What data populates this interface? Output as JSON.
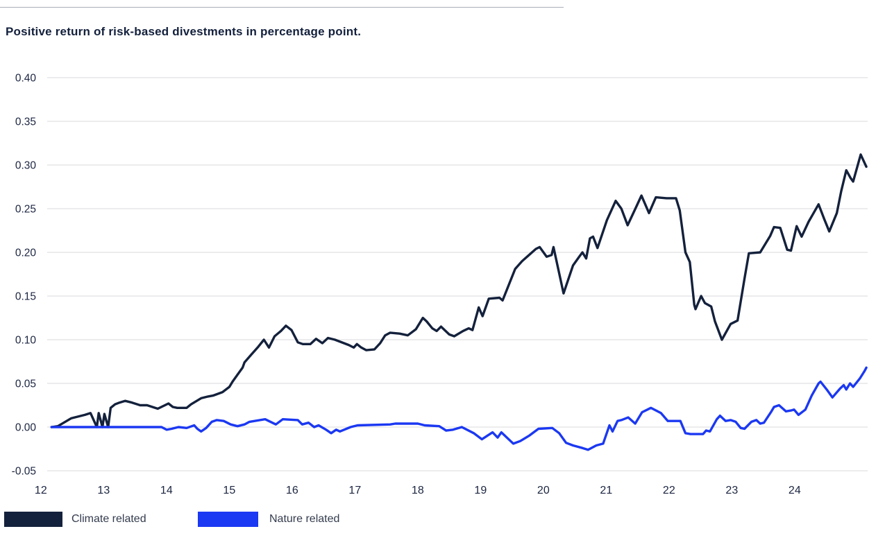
{
  "title": "Positive return of risk-based divestments in percentage point.",
  "colors": {
    "background": "#ffffff",
    "climate": "#14213c",
    "nature": "#1b38f2",
    "grid": "#d9dadd",
    "axis_text": "#1b2540",
    "title_text": "#13203c",
    "legend_text": "#333b4d",
    "top_rule": "#a9adb6"
  },
  "legend": {
    "items": [
      {
        "label": "Climate related",
        "color": "#14213c"
      },
      {
        "label": "Nature related",
        "color": "#1b38f2"
      }
    ]
  },
  "chart_data": {
    "type": "line",
    "title": "Positive return of risk-based divestments in percentage point.",
    "xlabel": "",
    "ylabel": "",
    "x_unit": "year (2012-2024, fractional = month)",
    "y_unit": "percentage point",
    "xlim": [
      11.93,
      25.0
    ],
    "ylim": [
      -0.05,
      0.4
    ],
    "grid": "horizontal",
    "legend_position": "bottom-left",
    "x_tick_labels": [
      "12",
      "13",
      "14",
      "15",
      "16",
      "17",
      "18",
      "19",
      "20",
      "21",
      "22",
      "23",
      "24"
    ],
    "x_tick_values": [
      12,
      13,
      14,
      15,
      16,
      17,
      18,
      19,
      20,
      21,
      22,
      23,
      24
    ],
    "y_tick_labels": [
      "0.40",
      "0.35",
      "0.30",
      "0.25",
      "0.20",
      "0.15",
      "0.10",
      "0.05",
      "0.00",
      "-0.05"
    ],
    "y_tick_values": [
      0.4,
      0.35,
      0.3,
      0.25,
      0.2,
      0.15,
      0.1,
      0.05,
      0.0,
      -0.05
    ],
    "series": [
      {
        "name": "Climate related",
        "color": "#14213c",
        "points": [
          [
            12.0,
            0
          ],
          [
            12.1,
            0.001
          ],
          [
            12.31,
            0.01
          ],
          [
            12.53,
            0.014
          ],
          [
            12.62,
            0.016
          ],
          [
            12.72,
            0
          ],
          [
            12.75,
            0.016
          ],
          [
            12.81,
            0
          ],
          [
            12.84,
            0.015
          ],
          [
            12.9,
            0
          ],
          [
            12.94,
            0.022
          ],
          [
            13.01,
            0.026
          ],
          [
            13.08,
            0.028
          ],
          [
            13.17,
            0.03
          ],
          [
            13.28,
            0.028
          ],
          [
            13.41,
            0.025
          ],
          [
            13.52,
            0.025
          ],
          [
            13.69,
            0.021
          ],
          [
            13.86,
            0.027
          ],
          [
            13.93,
            0.023
          ],
          [
            14.0,
            0.022
          ],
          [
            14.15,
            0.022
          ],
          [
            14.22,
            0.026
          ],
          [
            14.38,
            0.033
          ],
          [
            14.49,
            0.035
          ],
          [
            14.57,
            0.036
          ],
          [
            14.72,
            0.04
          ],
          [
            14.83,
            0.046
          ],
          [
            14.88,
            0.052
          ],
          [
            14.96,
            0.06
          ],
          [
            15.04,
            0.068
          ],
          [
            15.07,
            0.074
          ],
          [
            15.18,
            0.083
          ],
          [
            15.29,
            0.092
          ],
          [
            15.38,
            0.1
          ],
          [
            15.46,
            0.091
          ],
          [
            15.55,
            0.104
          ],
          [
            15.65,
            0.11
          ],
          [
            15.73,
            0.116
          ],
          [
            15.82,
            0.111
          ],
          [
            15.92,
            0.097
          ],
          [
            16.0,
            0.095
          ],
          [
            16.12,
            0.095
          ],
          [
            16.21,
            0.101
          ],
          [
            16.31,
            0.096
          ],
          [
            16.4,
            0.102
          ],
          [
            16.51,
            0.1
          ],
          [
            16.73,
            0.094
          ],
          [
            16.81,
            0.091
          ],
          [
            16.86,
            0.095
          ],
          [
            16.93,
            0.091
          ],
          [
            17.01,
            0.088
          ],
          [
            17.14,
            0.089
          ],
          [
            17.23,
            0.096
          ],
          [
            17.31,
            0.105
          ],
          [
            17.39,
            0.108
          ],
          [
            17.54,
            0.107
          ],
          [
            17.67,
            0.105
          ],
          [
            17.8,
            0.112
          ],
          [
            17.91,
            0.125
          ],
          [
            17.97,
            0.121
          ],
          [
            18.06,
            0.113
          ],
          [
            18.13,
            0.11
          ],
          [
            18.2,
            0.115
          ],
          [
            18.33,
            0.106
          ],
          [
            18.41,
            0.104
          ],
          [
            18.55,
            0.11
          ],
          [
            18.64,
            0.113
          ],
          [
            18.7,
            0.111
          ],
          [
            18.8,
            0.137
          ],
          [
            18.86,
            0.127
          ],
          [
            18.96,
            0.147
          ],
          [
            19.13,
            0.148
          ],
          [
            19.18,
            0.145
          ],
          [
            19.38,
            0.181
          ],
          [
            19.49,
            0.19
          ],
          [
            19.71,
            0.204
          ],
          [
            19.77,
            0.206
          ],
          [
            19.88,
            0.195
          ],
          [
            19.96,
            0.197
          ],
          [
            19.99,
            0.206
          ],
          [
            20.15,
            0.153
          ],
          [
            20.3,
            0.185
          ],
          [
            20.4,
            0.195
          ],
          [
            20.45,
            0.2
          ],
          [
            20.51,
            0.193
          ],
          [
            20.57,
            0.216
          ],
          [
            20.62,
            0.218
          ],
          [
            20.69,
            0.205
          ],
          [
            20.84,
            0.237
          ],
          [
            20.98,
            0.259
          ],
          [
            21.07,
            0.25
          ],
          [
            21.17,
            0.231
          ],
          [
            21.28,
            0.248
          ],
          [
            21.39,
            0.265
          ],
          [
            21.51,
            0.245
          ],
          [
            21.62,
            0.263
          ],
          [
            21.79,
            0.262
          ],
          [
            21.94,
            0.262
          ],
          [
            22.0,
            0.248
          ],
          [
            22.09,
            0.2
          ],
          [
            22.16,
            0.189
          ],
          [
            22.23,
            0.14
          ],
          [
            22.25,
            0.135
          ],
          [
            22.34,
            0.15
          ],
          [
            22.4,
            0.142
          ],
          [
            22.5,
            0.138
          ],
          [
            22.56,
            0.121
          ],
          [
            22.67,
            0.1
          ],
          [
            22.81,
            0.118
          ],
          [
            22.92,
            0.122
          ],
          [
            23.03,
            0.17
          ],
          [
            23.1,
            0.199
          ],
          [
            23.28,
            0.2
          ],
          [
            23.44,
            0.219
          ],
          [
            23.5,
            0.229
          ],
          [
            23.6,
            0.228
          ],
          [
            23.71,
            0.203
          ],
          [
            23.77,
            0.202
          ],
          [
            23.86,
            0.23
          ],
          [
            23.94,
            0.218
          ],
          [
            24.05,
            0.235
          ],
          [
            24.13,
            0.245
          ],
          [
            24.21,
            0.255
          ],
          [
            24.3,
            0.238
          ],
          [
            24.38,
            0.224
          ],
          [
            24.5,
            0.245
          ],
          [
            24.57,
            0.27
          ],
          [
            24.65,
            0.294
          ],
          [
            24.72,
            0.285
          ],
          [
            24.76,
            0.281
          ],
          [
            24.88,
            0.312
          ],
          [
            24.97,
            0.298
          ]
        ]
      },
      {
        "name": "Nature related",
        "color": "#1b38f2",
        "points": [
          [
            12.0,
            0
          ],
          [
            13.75,
            0
          ],
          [
            13.83,
            -0.003
          ],
          [
            13.91,
            -0.002
          ],
          [
            14.02,
            0
          ],
          [
            14.15,
            -0.001
          ],
          [
            14.27,
            0.002
          ],
          [
            14.32,
            -0.002
          ],
          [
            14.38,
            -0.005
          ],
          [
            14.46,
            -0.001
          ],
          [
            14.55,
            0.006
          ],
          [
            14.63,
            0.008
          ],
          [
            14.74,
            0.007
          ],
          [
            14.85,
            0.003
          ],
          [
            14.96,
            0.001
          ],
          [
            15.07,
            0.003
          ],
          [
            15.15,
            0.006
          ],
          [
            15.4,
            0.009
          ],
          [
            15.57,
            0.003
          ],
          [
            15.68,
            0.009
          ],
          [
            15.92,
            0.008
          ],
          [
            15.99,
            0.003
          ],
          [
            16.09,
            0.005
          ],
          [
            16.18,
            0
          ],
          [
            16.25,
            0.002
          ],
          [
            16.37,
            -0.003
          ],
          [
            16.45,
            -0.007
          ],
          [
            16.53,
            -0.003
          ],
          [
            16.59,
            -0.005
          ],
          [
            16.76,
            0
          ],
          [
            16.87,
            0.002
          ],
          [
            17.39,
            0.003
          ],
          [
            17.47,
            0.004
          ],
          [
            17.83,
            0.004
          ],
          [
            17.94,
            0.002
          ],
          [
            18.17,
            0.001
          ],
          [
            18.28,
            -0.004
          ],
          [
            18.39,
            -0.003
          ],
          [
            18.53,
            0
          ],
          [
            18.72,
            -0.007
          ],
          [
            18.85,
            -0.014
          ],
          [
            19.02,
            -0.006
          ],
          [
            19.1,
            -0.012
          ],
          [
            19.16,
            -0.006
          ],
          [
            19.35,
            -0.019
          ],
          [
            19.46,
            -0.016
          ],
          [
            19.6,
            -0.01
          ],
          [
            19.75,
            -0.002
          ],
          [
            19.97,
            -0.001
          ],
          [
            20.08,
            -0.007
          ],
          [
            20.19,
            -0.018
          ],
          [
            20.3,
            -0.021
          ],
          [
            20.45,
            -0.024
          ],
          [
            20.54,
            -0.026
          ],
          [
            20.67,
            -0.021
          ],
          [
            20.78,
            -0.019
          ],
          [
            20.88,
            0.002
          ],
          [
            20.93,
            -0.005
          ],
          [
            21.01,
            0.007
          ],
          [
            21.07,
            0.008
          ],
          [
            21.18,
            0.011
          ],
          [
            21.29,
            0.004
          ],
          [
            21.4,
            0.017
          ],
          [
            21.54,
            0.022
          ],
          [
            21.7,
            0.016
          ],
          [
            21.81,
            0.007
          ],
          [
            22.01,
            0.007
          ],
          [
            22.09,
            -0.007
          ],
          [
            22.17,
            -0.008
          ],
          [
            22.37,
            -0.008
          ],
          [
            22.42,
            -0.004
          ],
          [
            22.48,
            -0.005
          ],
          [
            22.59,
            0.009
          ],
          [
            22.64,
            0.013
          ],
          [
            22.73,
            0.007
          ],
          [
            22.81,
            0.008
          ],
          [
            22.89,
            0.006
          ],
          [
            22.97,
            -0.001
          ],
          [
            23.03,
            -0.002
          ],
          [
            23.14,
            0.006
          ],
          [
            23.22,
            0.008
          ],
          [
            23.28,
            0.004
          ],
          [
            23.34,
            0.005
          ],
          [
            23.45,
            0.017
          ],
          [
            23.5,
            0.023
          ],
          [
            23.58,
            0.025
          ],
          [
            23.69,
            0.018
          ],
          [
            23.77,
            0.019
          ],
          [
            23.82,
            0.02
          ],
          [
            23.89,
            0.014
          ],
          [
            24.0,
            0.02
          ],
          [
            24.1,
            0.036
          ],
          [
            24.21,
            0.05
          ],
          [
            24.24,
            0.052
          ],
          [
            24.35,
            0.042
          ],
          [
            24.43,
            0.034
          ],
          [
            24.55,
            0.044
          ],
          [
            24.61,
            0.048
          ],
          [
            24.65,
            0.043
          ],
          [
            24.71,
            0.05
          ],
          [
            24.76,
            0.046
          ],
          [
            24.87,
            0.056
          ],
          [
            24.94,
            0.064
          ],
          [
            24.97,
            0.068
          ]
        ]
      }
    ]
  }
}
